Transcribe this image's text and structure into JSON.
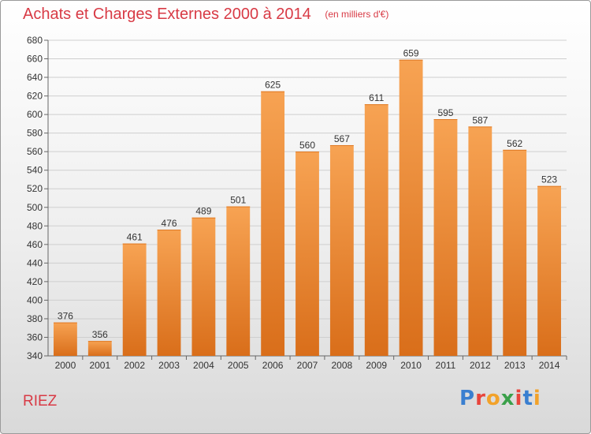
{
  "header": {
    "title": "Achats et Charges Externes 2000 à 2014",
    "subtitle": "(en milliers d'€)"
  },
  "footer": {
    "town": "RIEZ",
    "logo_text": "Proxiti"
  },
  "colors": {
    "title": "#d83a45",
    "bar_top": "#f7a353",
    "bar_bottom": "#d96e1a",
    "grid": "#cfcfcf"
  },
  "chart_data": {
    "type": "bar",
    "categories": [
      "2000",
      "2001",
      "2002",
      "2003",
      "2004",
      "2005",
      "2006",
      "2007",
      "2008",
      "2009",
      "2010",
      "2011",
      "2012",
      "2013",
      "2014"
    ],
    "values": [
      376,
      356,
      461,
      476,
      489,
      501,
      625,
      560,
      567,
      611,
      659,
      595,
      587,
      562,
      523
    ],
    "ylim": [
      340,
      680
    ],
    "yticks": [
      340,
      360,
      380,
      400,
      420,
      440,
      460,
      480,
      500,
      520,
      540,
      560,
      580,
      600,
      620,
      640,
      660,
      680
    ],
    "grid": true,
    "data_labels": true
  }
}
